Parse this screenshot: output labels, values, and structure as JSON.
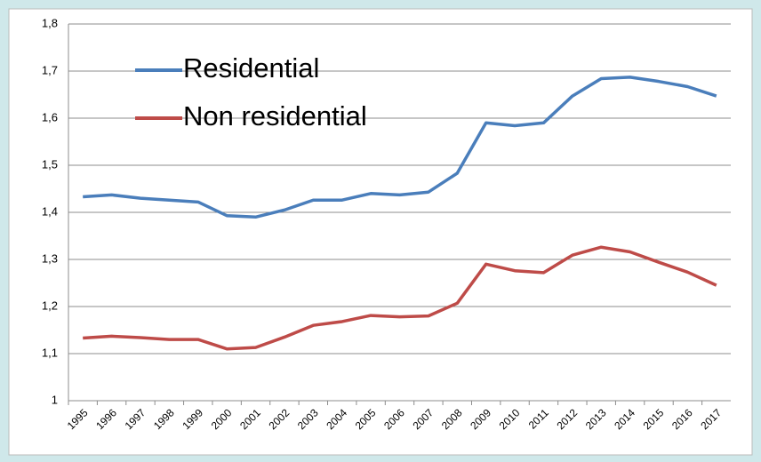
{
  "chart_data": {
    "type": "line",
    "categories": [
      "1995",
      "1996",
      "1997",
      "1998",
      "1999",
      "2000",
      "2001",
      "2002",
      "2003",
      "2004",
      "2005",
      "2006",
      "2007",
      "2008",
      "2009",
      "2010",
      "2011",
      "2012",
      "2013",
      "2014",
      "2015",
      "2016",
      "2017"
    ],
    "series": [
      {
        "name": "Residential",
        "color": "#4a7ebb",
        "values": [
          1.433,
          1.437,
          1.43,
          1.426,
          1.422,
          1.393,
          1.39,
          1.405,
          1.426,
          1.426,
          1.44,
          1.437,
          1.443,
          1.483,
          1.59,
          1.584,
          1.59,
          1.647,
          1.684,
          1.687,
          1.678,
          1.667,
          1.647
        ]
      },
      {
        "name": "Non residential",
        "color": "#be4b48",
        "values": [
          1.133,
          1.137,
          1.134,
          1.13,
          1.13,
          1.11,
          1.113,
          1.135,
          1.16,
          1.168,
          1.181,
          1.178,
          1.18,
          1.207,
          1.29,
          1.276,
          1.272,
          1.309,
          1.326,
          1.316,
          1.294,
          1.273,
          1.245
        ]
      }
    ],
    "ylim": [
      1,
      1.8
    ],
    "yticks": [
      1,
      {
        "value": 1.1,
        "label": "1,1"
      },
      {
        "value": 1.2,
        "label": "1,2"
      },
      {
        "value": 1.3,
        "label": "1,3"
      },
      {
        "value": 1.4,
        "label": "1,4"
      },
      {
        "value": 1.5,
        "label": "1,5"
      },
      {
        "value": 1.6,
        "label": "1,6"
      },
      {
        "value": 1.7,
        "label": "1,7"
      },
      {
        "value": 1.8,
        "label": "1,8"
      }
    ],
    "grid": true,
    "legend": "top-left"
  }
}
